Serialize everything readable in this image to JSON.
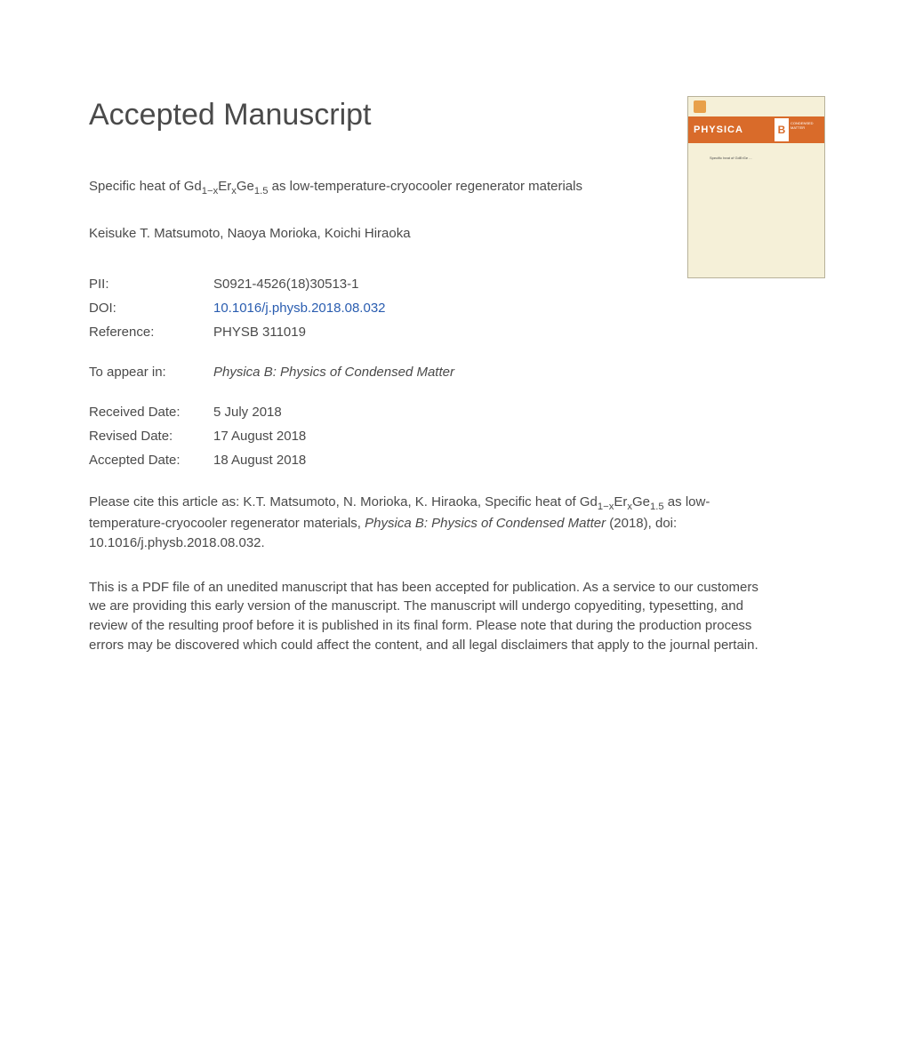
{
  "header": {
    "title": "Accepted Manuscript"
  },
  "article": {
    "title_prefix": "Specific heat of Gd",
    "formula_sub1": "1−x",
    "formula_mid1": "Er",
    "formula_sub2": "x",
    "formula_mid2": "Ge",
    "formula_sub3": "1.5",
    "title_suffix": " as low-temperature-cryocooler regenerator materials",
    "authors": "Keisuke T. Matsumoto, Naoya Morioka, Koichi Hiraoka"
  },
  "meta": {
    "pii_label": "PII:",
    "pii_value": "S0921-4526(18)30513-1",
    "doi_label": "DOI:",
    "doi_value": "10.1016/j.physb.2018.08.032",
    "ref_label": "Reference:",
    "ref_value": "PHYSB 311019",
    "appear_label": "To appear in:",
    "appear_value": "Physica B: Physics of Condensed Matter",
    "received_label": "Received Date:",
    "received_value": "5 July 2018",
    "revised_label": "Revised Date:",
    "revised_value": "17 August 2018",
    "accepted_label": "Accepted Date:",
    "accepted_value": "18 August 2018"
  },
  "citation": {
    "prefix": "Please cite this article as: K.T. Matsumoto, N. Morioka, K. Hiraoka, Specific heat of Gd",
    "sub1": "1−x",
    "mid1": "Er",
    "sub2": "x",
    "mid2": "Ge",
    "sub3": "1.5",
    "mid3": " as low-temperature-cryocooler regenerator materials, ",
    "journal": "Physica B: Physics of Condensed Matter",
    "suffix": " (2018), doi: 10.1016/j.physb.2018.08.032."
  },
  "disclaimer": "This is a PDF file of an unedited manuscript that has been accepted for publication. As a service to our customers we are providing this early version of the manuscript. The manuscript will undergo copyediting, typesetting, and review of the resulting proof before it is published in its final form. Please note that during the production process errors may be discovered which could affect the content, and all legal disclaimers that apply to the journal pertain.",
  "cover": {
    "brand": "PHYSICA",
    "letter": "B",
    "subtitle": "CONDENSED MATTER",
    "body_lines": "Specific\nheat of\nGdErGe\n...",
    "colors": {
      "bg": "#f5f0d8",
      "band": "#d96b2a",
      "border": "#b8b29a",
      "logo": "#e8a04a"
    }
  }
}
